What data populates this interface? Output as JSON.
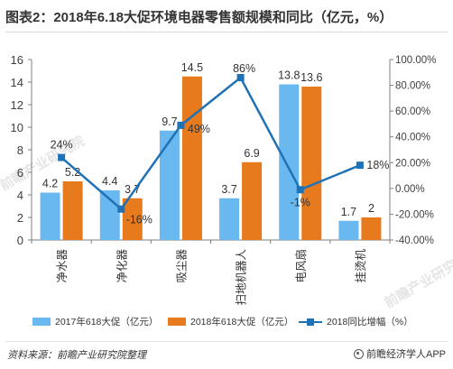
{
  "title": "图表2：2018年6.18大促环境电器零售额规模和同比（亿元，%）",
  "chart_data": {
    "type": "bar+line",
    "categories": [
      "净水器",
      "净化器",
      "吸尘器",
      "扫地机器人",
      "电风扇",
      "挂烫机"
    ],
    "series": [
      {
        "name": "2017年618大促（亿元）",
        "kind": "bar",
        "axis": "left",
        "color": "#6ab8f0",
        "values": [
          4.2,
          4.4,
          9.7,
          3.7,
          13.8,
          1.7
        ],
        "labels": [
          "4.2",
          "4.4",
          "9.7",
          "3.7",
          "13.8",
          "1.7"
        ]
      },
      {
        "name": "2018年618大促（亿元）",
        "kind": "bar",
        "axis": "left",
        "color": "#e87a1e",
        "values": [
          5.2,
          3.7,
          14.5,
          6.9,
          13.6,
          2
        ],
        "labels": [
          "5.2",
          "3.7",
          "14.5",
          "6.9",
          "13.6",
          "2"
        ]
      },
      {
        "name": "2018同比增幅（%）",
        "kind": "line",
        "axis": "right",
        "color": "#1f72b6",
        "values": [
          24,
          -16,
          49,
          86,
          -1,
          18
        ],
        "labels": [
          "24%",
          "-16%",
          "49%",
          "86%",
          "-1%",
          "18%"
        ]
      }
    ],
    "y_left": {
      "min": 0,
      "max": 16,
      "ticks": [
        "0",
        "2",
        "4",
        "6",
        "8",
        "10",
        "12",
        "14",
        "16"
      ]
    },
    "y_right": {
      "min": -40,
      "max": 100,
      "ticks": [
        "-40.00%",
        "-20.00%",
        "0.00%",
        "20.00%",
        "40.00%",
        "60.00%",
        "80.00%",
        "100.00%"
      ]
    },
    "grid": false,
    "legend": "bottom"
  },
  "watermark": "前瞻产业研究院",
  "footer": {
    "source": "资料来源：前瞻产业研究院整理",
    "brand": "前瞻经济学人APP"
  }
}
